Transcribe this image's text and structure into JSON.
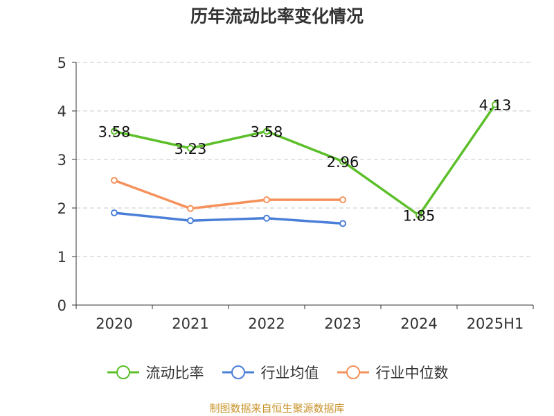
{
  "chart_data": {
    "type": "line",
    "title": "历年流动比率变化情况",
    "categories": [
      "2020",
      "2021",
      "2022",
      "2023",
      "2024",
      "2025H1"
    ],
    "yticks": [
      "0",
      "1",
      "2",
      "3",
      "4",
      "5"
    ],
    "ylim": [
      0,
      5
    ],
    "grid": true,
    "legend_position": "bottom",
    "series": [
      {
        "name": "流动比率",
        "color": "#5cbf2a",
        "values": [
          3.58,
          3.23,
          3.58,
          2.96,
          1.85,
          4.13
        ],
        "labels": [
          "3.58",
          "3.23",
          "3.58",
          "2.96",
          "1.85",
          "4.13"
        ]
      },
      {
        "name": "行业均值",
        "color": "#4a7fd8",
        "values": [
          1.9,
          1.74,
          1.79,
          1.68,
          null,
          null
        ]
      },
      {
        "name": "行业中位数",
        "color": "#f5915a",
        "values": [
          2.57,
          1.99,
          2.17,
          2.17,
          null,
          null
        ]
      }
    ]
  },
  "footer": {
    "source": "制图数据来自恒生聚源数据库"
  }
}
